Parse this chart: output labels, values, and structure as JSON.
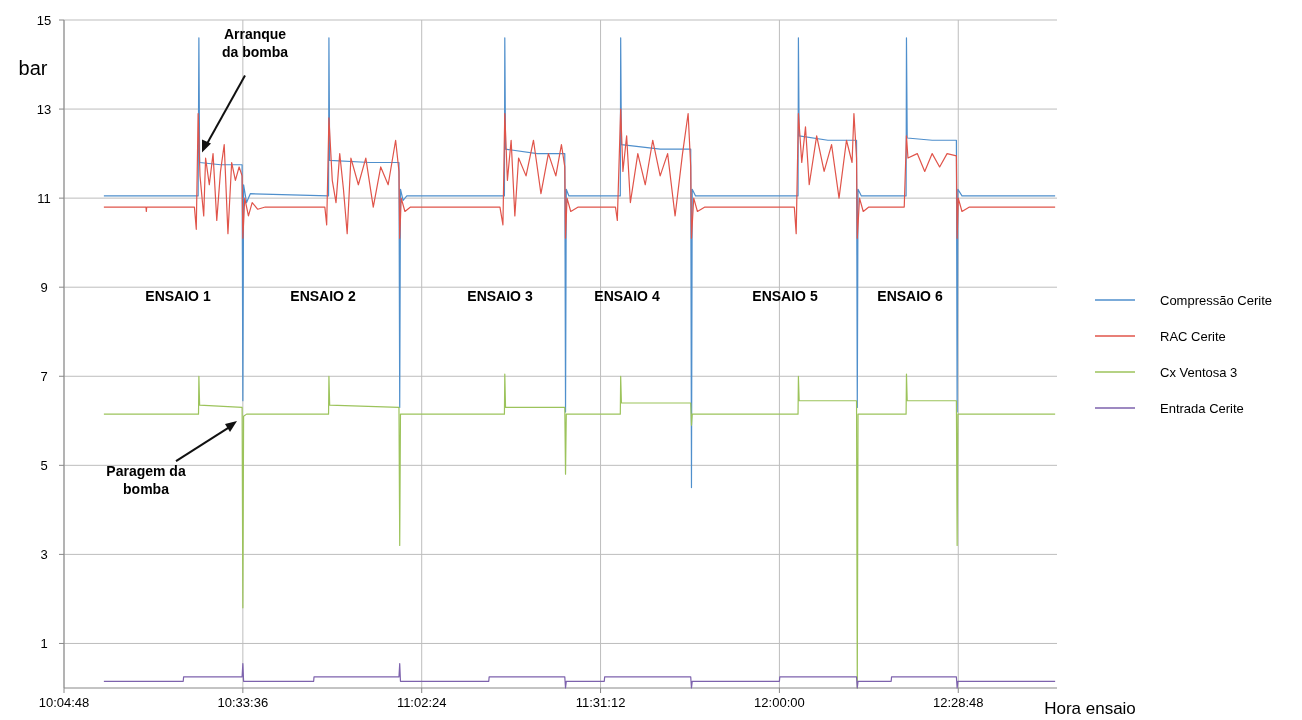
{
  "chart_data": {
    "type": "line",
    "ylabel": "bar",
    "xlabel": "Hora ensaio",
    "xlim": [
      10.08,
      12.745
    ],
    "xticks": [
      {
        "value": 10.08,
        "label": "10:04:48"
      },
      {
        "value": 10.56,
        "label": "10:33:36"
      },
      {
        "value": 11.04,
        "label": "11:02:24"
      },
      {
        "value": 11.52,
        "label": "11:31:12"
      },
      {
        "value": 12.0,
        "label": "12:00:00"
      },
      {
        "value": 12.48,
        "label": "12:28:48"
      }
    ],
    "ylim": [
      0,
      15
    ],
    "yticks": [
      1,
      3,
      5,
      7,
      9,
      11,
      13,
      15
    ],
    "grid": true,
    "legend": "right",
    "line_style": "solid",
    "marker": "none",
    "series": [
      {
        "name": "Compressão Cerite",
        "color": "#4f8fcc",
        "x": [
          10.187,
          10.44,
          10.442,
          10.444,
          10.5,
          10.558,
          10.56,
          10.562,
          10.57,
          10.58,
          10.79,
          10.791,
          10.793,
          10.9,
          10.979,
          10.981,
          10.983,
          10.99,
          11.0,
          11.262,
          11.263,
          11.265,
          11.35,
          11.424,
          11.426,
          11.428,
          11.435,
          11.573,
          11.574,
          11.576,
          11.68,
          11.762,
          11.764,
          11.766,
          11.775,
          12.05,
          12.051,
          12.053,
          12.13,
          12.207,
          12.209,
          12.211,
          12.22,
          12.34,
          12.341,
          12.343,
          12.41,
          12.475,
          12.477,
          12.479,
          12.49,
          12.74
        ],
        "values": [
          11.05,
          11.05,
          14.6,
          11.8,
          11.75,
          11.75,
          6.45,
          11.3,
          10.9,
          11.1,
          11.05,
          14.6,
          11.85,
          11.8,
          11.8,
          6.3,
          11.2,
          10.95,
          11.05,
          11.05,
          14.6,
          12.1,
          12.0,
          12.0,
          6.2,
          11.2,
          11.05,
          11.05,
          14.6,
          12.2,
          12.1,
          12.1,
          4.5,
          11.2,
          11.05,
          11.05,
          14.6,
          12.4,
          12.3,
          12.3,
          6.3,
          11.2,
          11.05,
          11.05,
          14.6,
          12.35,
          12.3,
          12.3,
          6.2,
          11.2,
          11.05,
          11.05
        ]
      },
      {
        "name": "RAC Cerite",
        "color": "#e0544a",
        "x": [
          10.187,
          10.3,
          10.301,
          10.302,
          10.43,
          10.435,
          10.44,
          10.445,
          10.455,
          10.46,
          10.47,
          10.48,
          10.49,
          10.5,
          10.51,
          10.52,
          10.53,
          10.54,
          10.55,
          10.558,
          10.56,
          10.565,
          10.575,
          10.585,
          10.6,
          10.62,
          10.78,
          10.785,
          10.791,
          10.8,
          10.81,
          10.82,
          10.83,
          10.84,
          10.85,
          10.87,
          10.89,
          10.91,
          10.93,
          10.95,
          10.97,
          10.979,
          10.981,
          10.985,
          10.995,
          11.01,
          11.25,
          11.258,
          11.263,
          11.27,
          11.28,
          11.29,
          11.3,
          11.32,
          11.34,
          11.36,
          11.38,
          11.4,
          11.415,
          11.424,
          11.426,
          11.43,
          11.44,
          11.46,
          11.56,
          11.565,
          11.574,
          11.58,
          11.59,
          11.6,
          11.62,
          11.64,
          11.66,
          11.68,
          11.7,
          11.72,
          11.74,
          11.755,
          11.762,
          11.764,
          11.77,
          11.78,
          11.8,
          12.04,
          12.045,
          12.051,
          12.06,
          12.07,
          12.08,
          12.1,
          12.12,
          12.14,
          12.16,
          12.18,
          12.195,
          12.2,
          12.207,
          12.209,
          12.215,
          12.225,
          12.24,
          12.335,
          12.341,
          12.345,
          12.37,
          12.39,
          12.41,
          12.43,
          12.45,
          12.475,
          12.477,
          12.48,
          12.49,
          12.51,
          12.74
        ],
        "values": [
          10.8,
          10.8,
          10.7,
          10.8,
          10.8,
          10.3,
          12.9,
          11.5,
          10.6,
          11.9,
          11.3,
          12.0,
          10.5,
          11.6,
          12.2,
          10.2,
          11.8,
          11.4,
          11.7,
          11.5,
          10.1,
          11.0,
          10.6,
          10.9,
          10.75,
          10.8,
          10.8,
          10.4,
          12.8,
          11.4,
          10.9,
          12.0,
          11.2,
          10.2,
          11.9,
          11.3,
          11.9,
          10.8,
          11.7,
          11.3,
          12.3,
          11.6,
          10.1,
          11.0,
          10.7,
          10.8,
          10.8,
          10.4,
          12.9,
          11.4,
          12.3,
          10.6,
          11.9,
          11.5,
          12.3,
          11.1,
          12.0,
          11.5,
          12.2,
          11.7,
          10.1,
          11.0,
          10.7,
          10.8,
          10.8,
          10.5,
          13.0,
          11.6,
          12.4,
          10.9,
          12.0,
          11.3,
          12.3,
          11.5,
          12.0,
          10.6,
          12.0,
          12.9,
          11.7,
          10.1,
          11.0,
          10.7,
          10.8,
          10.8,
          10.2,
          12.9,
          11.8,
          12.6,
          11.3,
          12.4,
          11.6,
          12.2,
          11.0,
          12.3,
          11.8,
          12.9,
          11.9,
          10.1,
          11.0,
          10.7,
          10.8,
          10.8,
          12.4,
          11.9,
          12.0,
          11.6,
          12.0,
          11.7,
          12.0,
          11.95,
          10.1,
          11.0,
          10.7,
          10.8,
          10.8
        ]
      },
      {
        "name": "Cx Ventosa 3",
        "color": "#9cc35b",
        "x": [
          10.187,
          10.441,
          10.442,
          10.444,
          10.558,
          10.56,
          10.562,
          10.57,
          10.79,
          10.791,
          10.793,
          10.979,
          10.981,
          10.983,
          11.262,
          11.263,
          11.265,
          11.424,
          11.426,
          11.428,
          11.573,
          11.574,
          11.576,
          11.762,
          11.764,
          11.766,
          12.05,
          12.051,
          12.053,
          12.207,
          12.209,
          12.211,
          12.34,
          12.341,
          12.343,
          12.475,
          12.477,
          12.479,
          12.74
        ],
        "values": [
          6.15,
          6.15,
          7.0,
          6.35,
          6.3,
          1.8,
          6.1,
          6.15,
          6.15,
          7.0,
          6.35,
          6.3,
          3.2,
          6.15,
          6.15,
          7.05,
          6.3,
          6.3,
          4.8,
          6.15,
          6.15,
          7.0,
          6.4,
          6.4,
          5.9,
          6.15,
          6.15,
          7.0,
          6.45,
          6.45,
          0.0,
          6.15,
          6.15,
          7.05,
          6.45,
          6.45,
          3.2,
          6.15,
          6.15
        ]
      },
      {
        "name": "Entrada Cerite",
        "color": "#7d62ad",
        "x": [
          10.187,
          10.4,
          10.401,
          10.558,
          10.56,
          10.562,
          10.75,
          10.751,
          10.979,
          10.981,
          10.983,
          11.22,
          11.221,
          11.424,
          11.426,
          11.428,
          11.53,
          11.531,
          11.762,
          11.764,
          11.766,
          12.0,
          12.001,
          12.207,
          12.209,
          12.211,
          12.3,
          12.301,
          12.475,
          12.477,
          12.479,
          12.74
        ],
        "values": [
          0.15,
          0.15,
          0.25,
          0.25,
          0.55,
          0.15,
          0.15,
          0.25,
          0.25,
          0.55,
          0.15,
          0.15,
          0.25,
          0.25,
          0.0,
          0.15,
          0.15,
          0.25,
          0.25,
          0.0,
          0.15,
          0.15,
          0.25,
          0.25,
          0.0,
          0.15,
          0.15,
          0.25,
          0.25,
          0.0,
          0.15,
          0.15
        ]
      }
    ],
    "annotations": [
      "Arranque da bomba",
      "Paragem da bomba",
      "ENSAIO 1",
      "ENSAIO 2",
      "ENSAIO 3",
      "ENSAIO 4",
      "ENSAIO 5",
      "ENSAIO 6"
    ]
  }
}
